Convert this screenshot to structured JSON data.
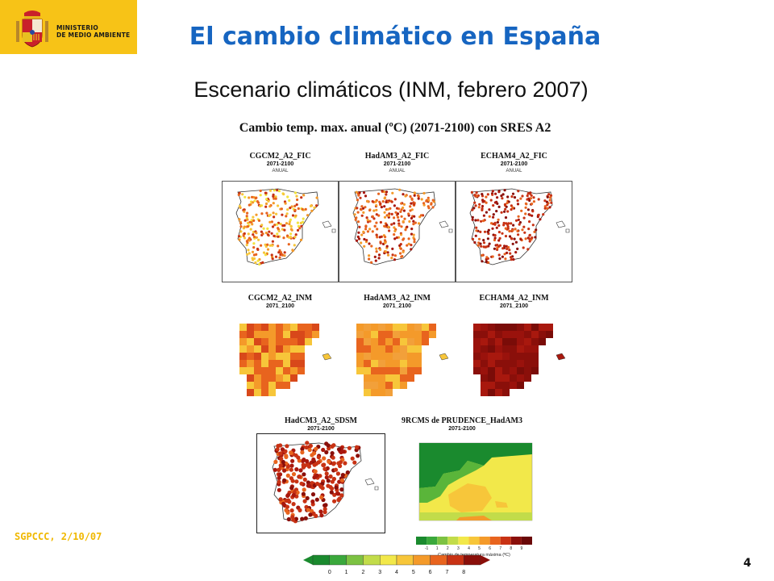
{
  "header": {
    "ministry_line1": "MINISTERIO",
    "ministry_line2": "DE MEDIO AMBIENTE",
    "title": "El cambio climático en España",
    "subtitle": "Escenario climáticos (INM, febrero 2007)"
  },
  "figure": {
    "title": "Cambio temp. max. anual (ºC) (2071-2100) con SRES A2",
    "rows": [
      {
        "panels": [
          {
            "label": "CGCM2_A2_FIC",
            "period": "2071-2100",
            "season": "ANUAL"
          },
          {
            "label": "HadAM3_A2_FIC",
            "period": "2071-2100",
            "season": "ANUAL"
          },
          {
            "label": "ECHAM4_A2_FIC",
            "period": "2071-2100",
            "season": "ANUAL"
          }
        ]
      },
      {
        "panels": [
          {
            "label": "CGCM2_A2_INM",
            "period": "2071_2100"
          },
          {
            "label": "HadAM3_A2_INM",
            "period": "2071_2100"
          },
          {
            "label": "ECHAM4_A2_INM",
            "period": "2071_2100"
          }
        ]
      },
      {
        "panels": [
          {
            "label": "HadCM3_A2_SDSM",
            "period": "2071-2100"
          },
          {
            "label": "9RCMS de PRUDENCE_HadAM3",
            "period": "2071-2100"
          }
        ]
      }
    ],
    "small_colorbar": {
      "ticks": [
        "-1",
        "1",
        "2",
        "3",
        "4",
        "5",
        "6",
        "7",
        "8",
        "9"
      ],
      "caption": "Cambio de temperatura máxima (ºC)"
    },
    "main_colorbar": {
      "ticks": [
        "0",
        "1",
        "2",
        "3",
        "4",
        "5",
        "6",
        "7",
        "8"
      ],
      "colors": [
        "#1a8a2e",
        "#3aa83c",
        "#7cc242",
        "#c2dc4a",
        "#f2e84a",
        "#f7c63a",
        "#f49a2a",
        "#e8641e",
        "#c83214",
        "#8a0f0a"
      ]
    }
  },
  "footer": {
    "date": "SGPCCC, 2/10/07",
    "page": "4"
  }
}
